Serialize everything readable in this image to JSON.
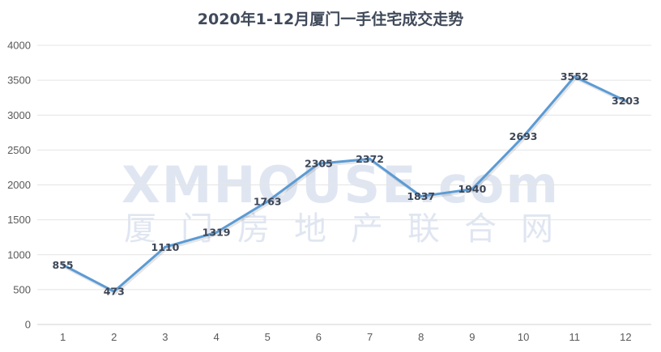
{
  "chart_data": {
    "type": "line",
    "title": "2020年1-12月厦门一手住宅成交走势",
    "categories": [
      "1",
      "2",
      "3",
      "4",
      "5",
      "6",
      "7",
      "8",
      "9",
      "10",
      "11",
      "12"
    ],
    "series": [
      {
        "values": [
          855,
          473,
          1110,
          1319,
          1763,
          2305,
          2372,
          1837,
          1940,
          2693,
          3552,
          3203
        ]
      }
    ],
    "ylim": [
      0,
      4000
    ],
    "yticks": [
      0,
      500,
      1000,
      1500,
      2000,
      2500,
      3000,
      3500,
      4000
    ],
    "grid": true,
    "legend": "none",
    "data_labels": true,
    "line_color": "#5b9bd5"
  },
  "watermark": {
    "brand": "XMHOUSE.com",
    "subtitle": "厦门房地产联合网",
    "color": "#c7d3e6"
  }
}
